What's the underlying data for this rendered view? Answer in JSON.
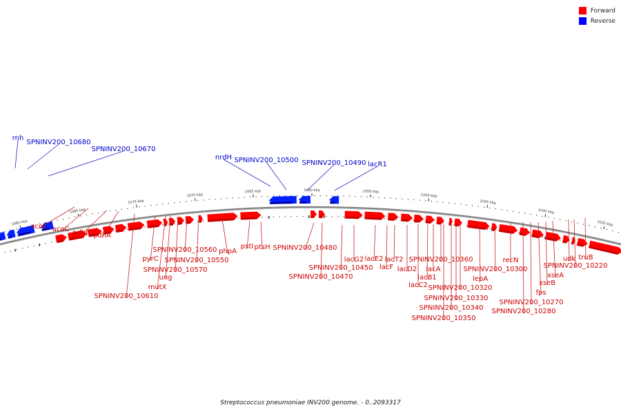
{
  "legend": {
    "forward_label": "Forward",
    "reverse_label": "Reverse",
    "forward_color": "#ff0000",
    "reverse_color": "#0000ff"
  },
  "caption": "Streptococcus pneumoniae INV200 genome. - 0..2093317",
  "scale": {
    "unit": "kbp",
    "major_ticks": [
      "1085 kbp",
      "1080 kbp",
      "1075 kbp",
      "1070 kbp",
      "1065 kbp",
      "1060 kbp",
      "1055 kbp",
      "1050 kbp",
      "1045 kbp",
      "1040 kbp",
      "1035 kbp"
    ]
  },
  "genes": {
    "reverse": [
      "rnh",
      "SPNINV200_10680",
      "SPNINV200_10670",
      "nrdH",
      "SPNINV200_10500",
      "SPNINV200_10490",
      "lacR1"
    ],
    "forward": [
      "acoL",
      "acoC",
      "pdhB",
      "pdhA",
      "SPNINV200_10610",
      "mutX",
      "pyrC",
      "ung",
      "SPNINV200_10570",
      "SPNINV200_10560",
      "SPNINV200_10550",
      "phpA",
      "pstI",
      "ptsH",
      "SPNINV200_10480",
      "SPNINV200_10470",
      "SPNINV200_10450",
      "lacG2",
      "lacE2",
      "lacF",
      "lacT2",
      "lacD2",
      "lacC2",
      "lacB1",
      "lacA",
      "SPNINV200_10360",
      "SPNINV200_10350",
      "SPNINV200_10340",
      "SPNINV200_10330",
      "SPNINV200_10320",
      "lepA",
      "SPNINV200_10300",
      "recN",
      "SPNINV200_10280",
      "SPNINV200_10270",
      "fps",
      "xseB",
      "xseA",
      "SPNINV200_10220",
      "udk",
      "truB"
    ]
  },
  "colors": {
    "forward_fill": "#ff0000",
    "forward_shade": "#c40000",
    "reverse_fill": "#0022ff",
    "reverse_shade": "#0000aa",
    "backbone": "#808080",
    "forward_label": "#cc0000",
    "reverse_label": "#0000cc"
  }
}
